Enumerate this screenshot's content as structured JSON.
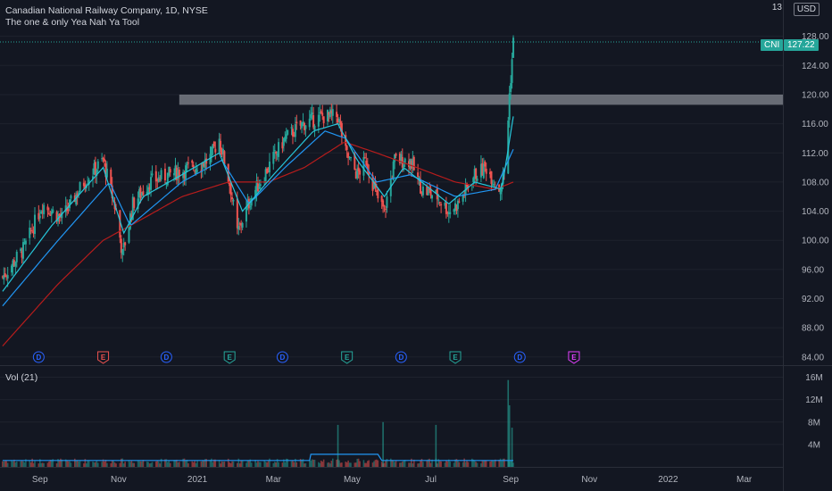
{
  "header": {
    "title": "Canadian National Railway Company, 1D, NYSE",
    "subtitle": "The one & only Yea Nah Ya Tool",
    "currency": "USD",
    "cut_tick": "13"
  },
  "badges": {
    "symbol": "CNI",
    "price": "127.22"
  },
  "volume_label": "Vol (21)",
  "colors": {
    "background": "#131722",
    "up": "#26a69a",
    "down": "#ef5350",
    "ema_fast": "#26c6da",
    "ema_mid": "#2196f3",
    "ema_slow": "#b71c1c",
    "zone": "#d1d4dc",
    "dividend": "#2962ff",
    "earnings_past": "#26a69a",
    "earnings_neg": "#ef5350",
    "earnings_future": "#e040fb"
  },
  "chart_data": {
    "type": "candlestick",
    "title": "Canadian National Railway Company, 1D, NYSE",
    "y_ticks": [
      84,
      88,
      92,
      96,
      100,
      104,
      108,
      112,
      116,
      120,
      124,
      128
    ],
    "y_tick_labels": [
      "84.00",
      "88.00",
      "92.00",
      "96.00",
      "100.00",
      "104.00",
      "108.00",
      "112.00",
      "116.00",
      "120.00",
      "124.00",
      "128.00"
    ],
    "ylim": [
      83,
      132
    ],
    "x_tick_labels": [
      "Sep",
      "Nov",
      "2021",
      "Mar",
      "May",
      "Jul",
      "Sep",
      "Nov",
      "2022",
      "Mar"
    ],
    "x_range": [
      "2020-08-01",
      "2022-03-31"
    ],
    "last_price": 127.22,
    "resistance_zone": {
      "low": 118.6,
      "high": 120.0,
      "from": "2020-12-18",
      "to": "2022-03-31"
    },
    "price_path": [
      [
        "2020-08-03",
        95
      ],
      [
        "2020-08-20",
        99
      ],
      [
        "2020-09-03",
        105
      ],
      [
        "2020-09-18",
        103
      ],
      [
        "2020-10-05",
        108
      ],
      [
        "2020-10-20",
        111
      ],
      [
        "2020-10-30",
        104
      ],
      [
        "2020-11-04",
        98
      ],
      [
        "2020-11-12",
        105
      ],
      [
        "2020-11-25",
        108
      ],
      [
        "2020-12-10",
        109
      ],
      [
        "2020-12-28",
        110
      ],
      [
        "2021-01-10",
        111
      ],
      [
        "2021-01-18",
        114
      ],
      [
        "2021-01-27",
        107
      ],
      [
        "2021-02-01",
        101
      ],
      [
        "2021-02-12",
        106
      ],
      [
        "2021-02-25",
        110
      ],
      [
        "2021-03-10",
        114
      ],
      [
        "2021-03-24",
        116
      ],
      [
        "2021-04-08",
        117
      ],
      [
        "2021-04-20",
        117
      ],
      [
        "2021-04-26",
        112
      ],
      [
        "2021-05-05",
        109
      ],
      [
        "2021-05-12",
        111
      ],
      [
        "2021-05-20",
        106
      ],
      [
        "2021-05-26",
        104
      ],
      [
        "2021-06-03",
        111
      ],
      [
        "2021-06-15",
        111
      ],
      [
        "2021-06-24",
        107
      ],
      [
        "2021-07-06",
        106
      ],
      [
        "2021-07-15",
        104
      ],
      [
        "2021-07-22",
        105
      ],
      [
        "2021-08-04",
        109
      ],
      [
        "2021-08-13",
        110
      ],
      [
        "2021-08-23",
        107
      ],
      [
        "2021-08-28",
        110
      ],
      [
        "2021-08-31",
        120
      ],
      [
        "2021-09-03",
        127.22
      ]
    ],
    "ema_fast_path": [
      [
        "2020-08-03",
        93
      ],
      [
        "2020-09-10",
        102
      ],
      [
        "2020-10-20",
        110
      ],
      [
        "2020-11-05",
        101
      ],
      [
        "2020-11-20",
        106
      ],
      [
        "2020-12-20",
        109
      ],
      [
        "2021-01-18",
        112
      ],
      [
        "2021-02-05",
        104
      ],
      [
        "2021-03-01",
        109
      ],
      [
        "2021-04-01",
        115
      ],
      [
        "2021-04-20",
        116
      ],
      [
        "2021-05-05",
        111
      ],
      [
        "2021-05-26",
        106
      ],
      [
        "2021-06-10",
        110
      ],
      [
        "2021-07-15",
        105
      ],
      [
        "2021-08-04",
        108
      ],
      [
        "2021-08-25",
        107
      ],
      [
        "2021-09-03",
        117
      ]
    ],
    "ema_mid_path": [
      [
        "2020-08-03",
        91
      ],
      [
        "2020-09-15",
        100
      ],
      [
        "2020-10-25",
        108
      ],
      [
        "2020-11-10",
        102
      ],
      [
        "2020-12-20",
        108
      ],
      [
        "2021-01-20",
        111
      ],
      [
        "2021-02-10",
        105
      ],
      [
        "2021-03-10",
        110
      ],
      [
        "2021-04-10",
        115
      ],
      [
        "2021-04-26",
        114
      ],
      [
        "2021-05-20",
        108
      ],
      [
        "2021-06-15",
        109
      ],
      [
        "2021-07-20",
        106
      ],
      [
        "2021-08-20",
        107
      ],
      [
        "2021-09-03",
        112.5
      ]
    ],
    "ema_slow_path": [
      [
        "2020-08-03",
        85.5
      ],
      [
        "2020-09-15",
        94
      ],
      [
        "2020-10-20",
        100
      ],
      [
        "2020-11-20",
        103
      ],
      [
        "2020-12-20",
        106
      ],
      [
        "2021-01-25",
        108
      ],
      [
        "2021-02-25",
        108
      ],
      [
        "2021-03-25",
        110
      ],
      [
        "2021-04-25",
        113.5
      ],
      [
        "2021-05-20",
        112
      ],
      [
        "2021-06-20",
        110
      ],
      [
        "2021-07-20",
        108
      ],
      [
        "2021-08-20",
        107
      ],
      [
        "2021-09-03",
        108
      ]
    ],
    "events": [
      {
        "type": "D",
        "date": "2020-08-31",
        "kind": "dividend"
      },
      {
        "type": "E",
        "date": "2020-10-20",
        "kind": "earnings_neg"
      },
      {
        "type": "D",
        "date": "2020-12-08",
        "kind": "dividend"
      },
      {
        "type": "E",
        "date": "2021-01-26",
        "kind": "earnings_past"
      },
      {
        "type": "D",
        "date": "2021-03-08",
        "kind": "dividend"
      },
      {
        "type": "E",
        "date": "2021-04-27",
        "kind": "earnings_past"
      },
      {
        "type": "D",
        "date": "2021-06-08",
        "kind": "dividend"
      },
      {
        "type": "E",
        "date": "2021-07-20",
        "kind": "earnings_past"
      },
      {
        "type": "D",
        "date": "2021-09-08",
        "kind": "dividend"
      },
      {
        "type": "E",
        "date": "2021-10-20",
        "kind": "earnings_future"
      }
    ],
    "volume": {
      "y_ticks": [
        4,
        8,
        12,
        16
      ],
      "y_tick_labels": [
        "4M",
        "8M",
        "12M",
        "16M"
      ],
      "ylim": [
        0,
        18
      ],
      "typical": 1.0,
      "spikes": [
        {
          "date": "2021-04-20",
          "value": 7.5
        },
        {
          "date": "2021-05-25",
          "value": 8.0
        },
        {
          "date": "2021-07-05",
          "value": 7.5
        },
        {
          "date": "2021-08-30",
          "value": 15.5
        },
        {
          "date": "2021-08-31",
          "value": 11.0
        },
        {
          "date": "2021-09-02",
          "value": 7.0
        }
      ]
    }
  }
}
